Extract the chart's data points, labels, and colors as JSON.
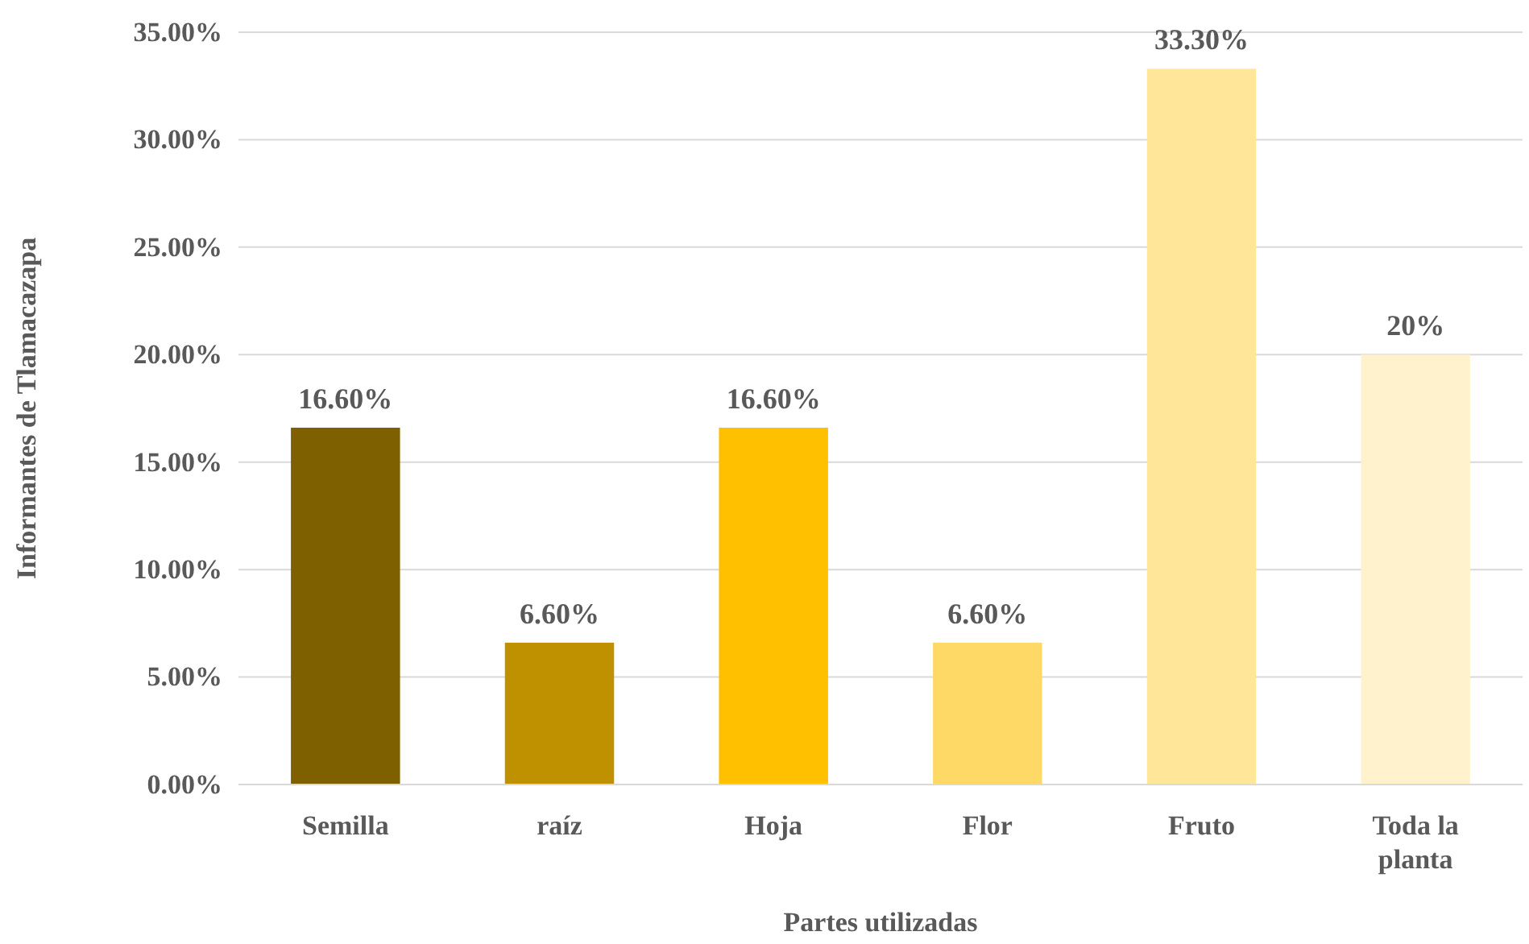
{
  "chart_data": {
    "type": "bar",
    "xlabel": "Partes utilizadas",
    "ylabel": "Informantes de Tlamacazapa",
    "categories": [
      "Semilla",
      "raíz",
      "Hoja",
      "Flor",
      "Fruto",
      "Toda la planta"
    ],
    "values": [
      16.6,
      6.6,
      16.6,
      6.6,
      33.3,
      20
    ],
    "colors": [
      "#7f6000",
      "#bf9000",
      "#ffc000",
      "#ffd966",
      "#ffe699",
      "#fff2cc"
    ],
    "value_labels": [
      "16.60%",
      "6.60%",
      "16.60%",
      "6.60%",
      "33.30%",
      "20%"
    ],
    "ylim": [
      0,
      35
    ],
    "yticks": [
      {
        "value": 0,
        "label": "0.00%"
      },
      {
        "value": 5,
        "label": "5.00%"
      },
      {
        "value": 10,
        "label": "10.00%"
      },
      {
        "value": 15,
        "label": "15.00%"
      },
      {
        "value": 20,
        "label": "20.00%"
      },
      {
        "value": 25,
        "label": "25.00%"
      },
      {
        "value": 30,
        "label": "30.00%"
      },
      {
        "value": 35,
        "label": "35.00%"
      }
    ],
    "grid": "y"
  }
}
